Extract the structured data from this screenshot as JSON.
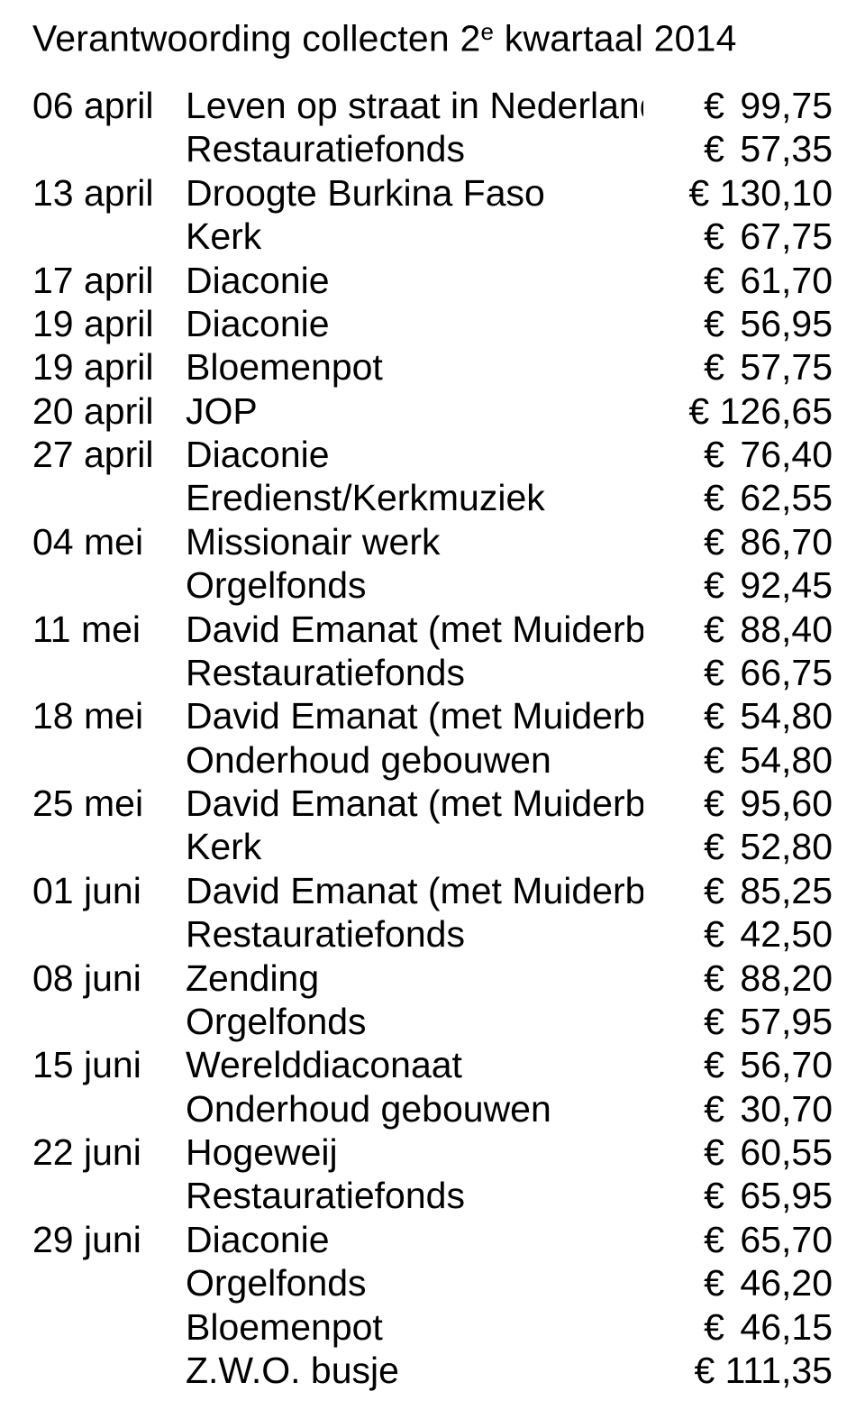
{
  "title_prefix": "Verantwoording collecten 2",
  "title_sup": "e",
  "title_suffix": " kwartaal 2014",
  "euro": "€",
  "rows": [
    {
      "date": "06 april",
      "desc": "Leven op straat in Nederland",
      "amount": "99,75"
    },
    {
      "date": "",
      "desc": "Restauratiefonds",
      "amount": "57,35"
    },
    {
      "date": "13 april",
      "desc": "Droogte Burkina Faso",
      "amount": "130,10"
    },
    {
      "date": "",
      "desc": "Kerk",
      "amount": "67,75"
    },
    {
      "date": "17 april",
      "desc": "Diaconie",
      "amount": "61,70"
    },
    {
      "date": "19 april",
      "desc": "Diaconie",
      "amount": "56,95"
    },
    {
      "date": "19 april",
      "desc": "Bloemenpot",
      "amount": "57,75"
    },
    {
      "date": "20 april",
      "desc": "JOP",
      "amount": "126,65"
    },
    {
      "date": "27 april",
      "desc": "Diaconie",
      "amount": "76,40"
    },
    {
      "date": "",
      "desc": "Eredienst/Kerkmuziek",
      "amount": "62,55"
    },
    {
      "date": "04 mei",
      "desc": "Missionair werk",
      "amount": "86,70"
    },
    {
      "date": "",
      "desc": "Orgelfonds",
      "amount": "92,45"
    },
    {
      "date": "11 mei",
      "desc": "David Emanat (met Muiderberg)",
      "amount": "88,40"
    },
    {
      "date": "",
      "desc": "Restauratiefonds",
      "amount": "66,75"
    },
    {
      "date": "18 mei",
      "desc": "David Emanat (met Muiderberg)",
      "amount": "54,80"
    },
    {
      "date": "",
      "desc": "Onderhoud gebouwen",
      "amount": "54,80"
    },
    {
      "date": "25 mei",
      "desc": "David Emanat (met Muiderberg)",
      "amount": "95,60"
    },
    {
      "date": "",
      "desc": "Kerk",
      "amount": "52,80"
    },
    {
      "date": "01 juni",
      "desc": "David Emanat (met Muiderberg",
      "amount": "85,25"
    },
    {
      "date": "",
      "desc": "Restauratiefonds",
      "amount": "42,50"
    },
    {
      "date": "08 juni",
      "desc": "Zending",
      "amount": "88,20"
    },
    {
      "date": "",
      "desc": "Orgelfonds",
      "amount": "57,95"
    },
    {
      "date": "15 juni",
      "desc": "Werelddiaconaat",
      "amount": "56,70"
    },
    {
      "date": "",
      "desc": "Onderhoud gebouwen",
      "amount": "30,70"
    },
    {
      "date": "22 juni",
      "desc": "Hogeweij",
      "amount": "60,55"
    },
    {
      "date": "",
      "desc": "Restauratiefonds",
      "amount": "65,95"
    },
    {
      "date": "29 juni",
      "desc": "Diaconie",
      "amount": "65,70"
    },
    {
      "date": "",
      "desc": "Orgelfonds",
      "amount": "46,20"
    },
    {
      "date": "",
      "desc": "Bloemenpot",
      "amount": "46,15"
    },
    {
      "date": "",
      "desc": "Z.W.O. busje",
      "amount": "111,35"
    }
  ]
}
